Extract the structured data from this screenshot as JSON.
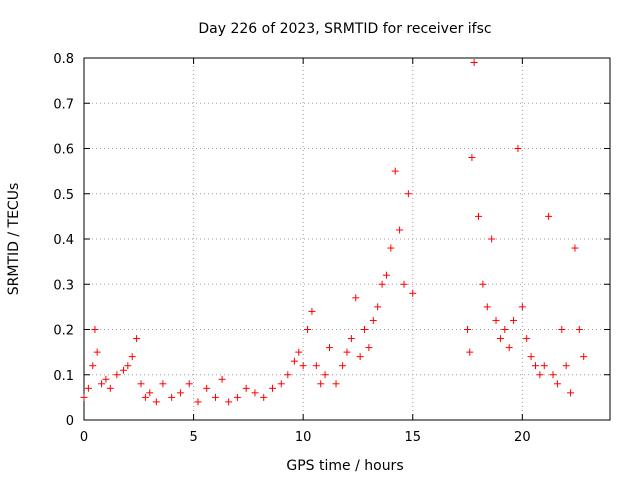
{
  "chart_data": {
    "type": "scatter",
    "title": "Day 226 of 2023, SRMTID for receiver ifsc",
    "xlabel": "GPS time / hours",
    "ylabel": "SRMTID / TECUs",
    "xlim": [
      0,
      24
    ],
    "ylim": [
      0,
      0.8
    ],
    "xticks": [
      "0",
      "5",
      "10",
      "15",
      "20"
    ],
    "yticks": [
      "0",
      "0.1",
      "0.2",
      "0.3",
      "0.4",
      "0.5",
      "0.6",
      "0.7",
      "0.8"
    ],
    "grid": true,
    "marker": "+",
    "color": "#ff0000",
    "series": [
      {
        "name": "SRMTID",
        "x": [
          0.0,
          0.2,
          0.4,
          0.5,
          0.6,
          0.8,
          1.0,
          1.2,
          1.5,
          1.8,
          2.0,
          2.2,
          2.4,
          2.6,
          2.8,
          3.0,
          3.3,
          3.6,
          4.0,
          4.4,
          4.8,
          5.2,
          5.6,
          6.0,
          6.3,
          6.6,
          7.0,
          7.4,
          7.8,
          8.2,
          8.6,
          9.0,
          9.3,
          9.6,
          9.8,
          10.0,
          10.2,
          10.4,
          10.6,
          10.8,
          11.0,
          11.2,
          11.5,
          11.8,
          12.0,
          12.2,
          12.4,
          12.6,
          12.8,
          13.0,
          13.2,
          13.4,
          13.6,
          13.8,
          14.0,
          14.2,
          14.4,
          14.6,
          14.8,
          15.0,
          17.5,
          17.6,
          17.7,
          17.8,
          18.0,
          18.2,
          18.4,
          18.6,
          18.8,
          19.0,
          19.2,
          19.4,
          19.6,
          19.8,
          20.0,
          20.2,
          20.4,
          20.6,
          20.8,
          21.0,
          21.2,
          21.4,
          21.6,
          21.8,
          22.0,
          22.2,
          22.4,
          22.6,
          22.8
        ],
        "values": [
          0.05,
          0.07,
          0.12,
          0.2,
          0.15,
          0.08,
          0.09,
          0.07,
          0.1,
          0.11,
          0.12,
          0.14,
          0.18,
          0.08,
          0.05,
          0.06,
          0.04,
          0.08,
          0.05,
          0.06,
          0.08,
          0.04,
          0.07,
          0.05,
          0.09,
          0.04,
          0.05,
          0.07,
          0.06,
          0.05,
          0.07,
          0.08,
          0.1,
          0.13,
          0.15,
          0.12,
          0.2,
          0.24,
          0.12,
          0.08,
          0.1,
          0.16,
          0.08,
          0.12,
          0.15,
          0.18,
          0.27,
          0.14,
          0.2,
          0.16,
          0.22,
          0.25,
          0.3,
          0.32,
          0.38,
          0.55,
          0.42,
          0.3,
          0.5,
          0.28,
          0.2,
          0.15,
          0.58,
          0.79,
          0.45,
          0.3,
          0.25,
          0.4,
          0.22,
          0.18,
          0.2,
          0.16,
          0.22,
          0.6,
          0.25,
          0.18,
          0.14,
          0.12,
          0.1,
          0.12,
          0.45,
          0.1,
          0.08,
          0.2,
          0.12,
          0.06,
          0.38,
          0.2,
          0.14
        ]
      }
    ]
  }
}
